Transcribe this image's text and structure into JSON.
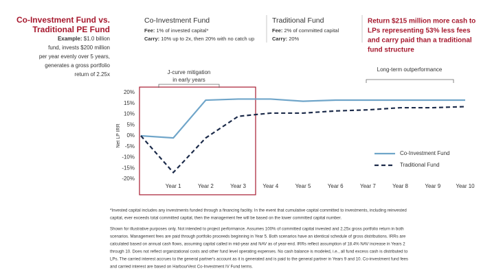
{
  "header": {
    "title": [
      "Co-Investment Fund vs.",
      "Traditional PE Fund"
    ],
    "example_label": "Example:",
    "example_lines": [
      "$1.0 billion",
      "fund, invests $200 million",
      "per year evenly over 5 years,",
      "generates a gross portfolio",
      "return of 2.25x"
    ],
    "funds": [
      {
        "name": "Co-Investment Fund",
        "fee_label": "Fee:",
        "fee": "1% of invested capital*",
        "carry_label": "Carry:",
        "carry": "10% up to 2x, then 20% with no catch up"
      },
      {
        "name": "Traditional Fund",
        "fee_label": "Fee:",
        "fee": "2% of committed capital",
        "carry_label": "Carry:",
        "carry": "20%"
      }
    ],
    "callout": [
      "Return $215 million more cash to",
      "LPs representing 53% less fees",
      "and carry paid than a traditional",
      "fund structure"
    ]
  },
  "chart_data": {
    "type": "line",
    "y_label": "Net LP IRR",
    "categories": [
      null,
      "Year 1",
      "Year 2",
      "Year 3",
      "Year 4",
      "Year 5",
      "Year 6",
      "Year 7",
      "Year 8",
      "Year 9",
      "Year 10"
    ],
    "series": [
      {
        "name": "Co-Investment Fund",
        "color": "#6fa5c9",
        "dashed": false,
        "values": [
          0,
          -1,
          16.5,
          17,
          17,
          16,
          16.5,
          16.5,
          16.5,
          16.5,
          16.5
        ]
      },
      {
        "name": "Traditional Fund",
        "color": "#1c2b4a",
        "dashed": true,
        "values": [
          0,
          -17,
          -1,
          9,
          10.5,
          10.5,
          11.5,
          12,
          13,
          13,
          13.5
        ]
      }
    ],
    "ylim": [
      -20,
      20
    ],
    "yticks": [
      {
        "value": 20,
        "label": "20%"
      },
      {
        "value": 15,
        "label": "15%"
      },
      {
        "value": 10,
        "label": "10%"
      },
      {
        "value": 5,
        "label": "5%"
      },
      {
        "value": 0,
        "label": "0%"
      },
      {
        "value": -5,
        "label": "-5%"
      },
      {
        "value": -10,
        "label": "-10%"
      },
      {
        "value": -15,
        "label": "-15%"
      },
      {
        "value": -20,
        "label": "-20%"
      }
    ],
    "legend": "right",
    "annotations": [
      [
        "J-curve mitigation",
        "in early years"
      ],
      [
        "Long-term outperformance"
      ]
    ]
  },
  "footnotes": [
    [
      "*Invested capital includes any investments funded through a financing facility. In the event that cumulative capital committed to investments, including reinvested",
      "capital, ever exceeds total committed capital, then the management fee will be based on the lower committed capital number."
    ],
    [
      "Shown for illustrative purposes only. Not intended to project performance. Assumes 100% of committed capital invested and 2.25x gross portfolio return in both",
      "scenarios. Management fees are paid through portfolio proceeds beginning in Year 5. Both scenarios have an identical schedule of gross distributions. IRRs are",
      "calculated based on annual cash flows, assuming capital called in mid-year and NAV as of year-end. IRRs reflect assumption of 18.4% NAV increase in Years 2",
      "through 10. Does not reflect organizational costs and other fund level operating expenses. No cash balance is modeled, i.e., all fund excess cash is distributed to",
      "LPs. The carried interest accrues to the general partner's account as it is generated and is paid to the general partner in Years 9 and 10. Co-investment fund fees",
      "and carried interest are based on HarbourVest Co-Investment IV Fund terms."
    ]
  ]
}
